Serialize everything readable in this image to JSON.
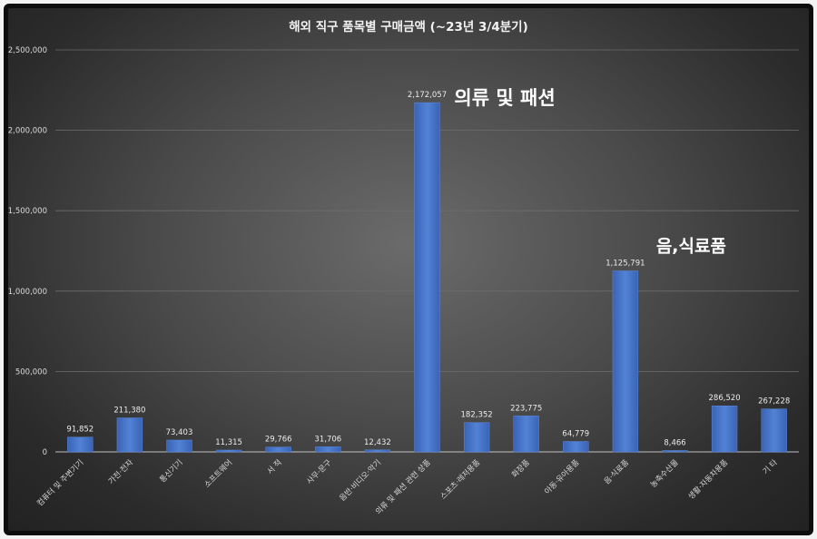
{
  "chart_data": {
    "type": "bar",
    "title": "해외 직구 품목별 구매금액 (~23년 3/4분기)",
    "xlabel": "",
    "ylabel": "",
    "ylim": [
      0,
      2500000
    ],
    "yticks": [
      0,
      500000,
      1000000,
      1500000,
      2000000,
      2500000
    ],
    "ytick_labels": [
      "0",
      "500,000",
      "1,000,000",
      "1,500,000",
      "2,000,000",
      "2,500,000"
    ],
    "grid": true,
    "categories": [
      "컴퓨터 및 주변기기",
      "가전·전자",
      "통신기기",
      "소프트웨어",
      "서 적",
      "사무·문구",
      "음반·비디오·악기",
      "의류 및 패션 관련 상품",
      "스포츠·레저용품",
      "화장품",
      "아동·유아용품",
      "음·식료품",
      "농축수산물",
      "생활·자동차용품",
      "기 타"
    ],
    "values": [
      91852,
      211380,
      73403,
      11315,
      29766,
      31706,
      12432,
      2172057,
      182352,
      223775,
      64779,
      1125791,
      8466,
      286520,
      267228
    ],
    "value_labels": [
      "91,852",
      "211,380",
      "73,403",
      "11,315",
      "29,766",
      "31,706",
      "12,432",
      "2,172,057",
      "182,352",
      "223,775",
      "64,779",
      "1,125,791",
      "8,466",
      "286,520",
      "267,228"
    ],
    "bar_color": "#4472c4",
    "annotations": [
      {
        "text": "의류 및 패션",
        "category_index": 7
      },
      {
        "text": "음,식료품",
        "category_index": 11
      }
    ]
  }
}
